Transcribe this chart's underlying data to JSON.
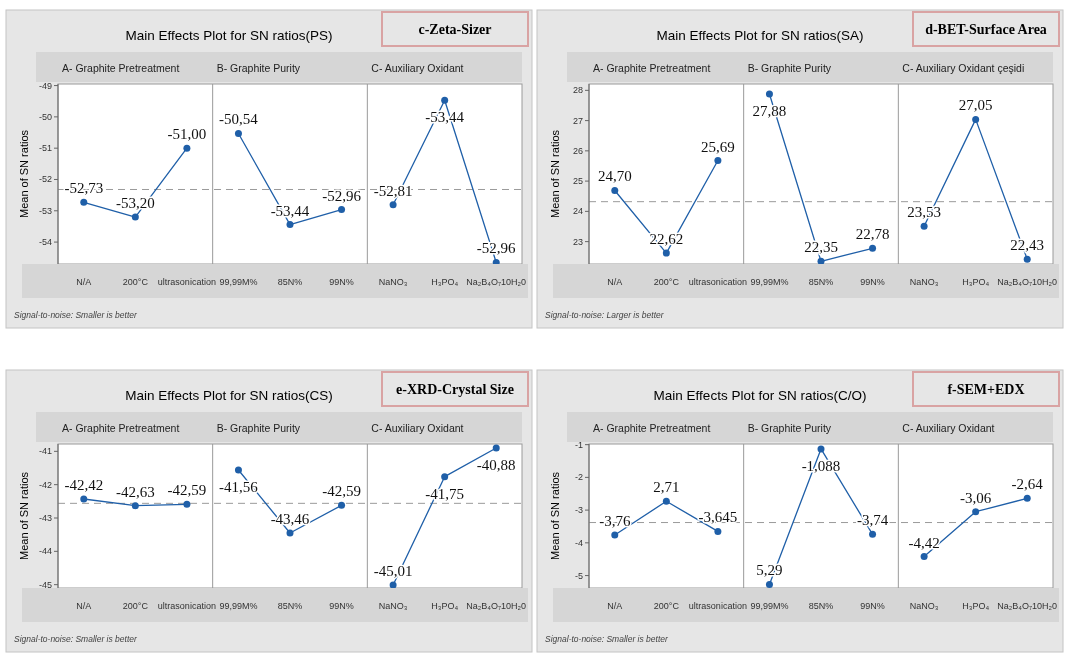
{
  "chart_data": [
    {
      "type": "line",
      "title": "Main Effects Plot for SN ratios(PS)",
      "ylabel": "Mean of SN ratios",
      "categories": [
        "N/A",
        "200°C",
        "ultrasonication",
        "99,99M%",
        "85N%",
        "99N%",
        "NaNO₃",
        "H₃PO₄",
        "Na₂B₄O₇10H₂0"
      ],
      "series": [
        {
          "color": "#1f5fa8",
          "values": [
            -52.73,
            -53.2,
            -51.0,
            null,
            null,
            null,
            null,
            null,
            null
          ]
        },
        {
          "color": "#1f5fa8",
          "values": [
            null,
            null,
            null,
            -50.53,
            -53.44,
            -52.96,
            null,
            null,
            null
          ]
        },
        {
          "color": "#1f5fa8",
          "values": [
            null,
            null,
            null,
            null,
            null,
            null,
            -52.81,
            -49.47,
            -54.65
          ]
        }
      ],
      "ylim": [
        -54.7,
        -48.95
      ],
      "yticks": [
        -54,
        -53,
        -52,
        -51,
        -50,
        -49
      ],
      "marker": "circle",
      "line_style": "solid",
      "ref_lines": [
        {
          "axis": "y",
          "value": -52.32,
          "color": "#9a9a9a",
          "line_style": "dashed"
        }
      ],
      "annotations": [
        "c-Zeta-Sizer",
        "Signal-to-noise: Smaller is better",
        "A-  Graphite Pretreatment",
        "B- Graphite Purity",
        "C- Auxiliary Oxidant",
        {
          "text": "-52,73",
          "x": "N/A",
          "y": -52.73
        },
        {
          "text": "-53,20",
          "x": "200°C",
          "y": -53.2
        },
        {
          "text": "-51,00",
          "x": "ultrasonication",
          "y": -51.0
        },
        {
          "text": "-50,54",
          "x": "99,99M%",
          "y": -50.53
        },
        {
          "text": "-53,44",
          "x": "85N%",
          "y": -53.44
        },
        {
          "text": "-52,96",
          "x": "99N%",
          "y": -52.96
        },
        {
          "text": "-52,81",
          "x": "NaNO₃",
          "y": -52.81
        },
        {
          "text": "-53,44",
          "x": "H₃PO₄",
          "y": -49.47
        },
        {
          "text": "-52,96",
          "x": "Na₂B₄O₇10H₂0",
          "y": -54.65
        }
      ]
    },
    {
      "type": "line",
      "title": "Main Effects Plot for SN ratios(SA)",
      "ylabel": "Mean of SN ratios",
      "categories": [
        "N/A",
        "200°C",
        "ultrasonication",
        "99,99M%",
        "85N%",
        "99N%",
        "NaNO₃",
        "H₃PO₄",
        "Na₂B₄O₇10H₂0"
      ],
      "series": [
        {
          "color": "#1f5fa8",
          "values": [
            24.69,
            22.62,
            25.68,
            null,
            null,
            null,
            null,
            null,
            null
          ]
        },
        {
          "color": "#1f5fa8",
          "values": [
            null,
            null,
            null,
            27.88,
            22.35,
            22.78,
            null,
            null,
            null
          ]
        },
        {
          "color": "#1f5fa8",
          "values": [
            null,
            null,
            null,
            null,
            null,
            null,
            23.51,
            27.04,
            22.42
          ]
        }
      ],
      "ylim": [
        22.26,
        28.21
      ],
      "yticks": [
        23,
        24,
        25,
        26,
        27,
        28
      ],
      "marker": "circle",
      "line_style": "solid",
      "ref_lines": [
        {
          "axis": "y",
          "value": 24.32,
          "color": "#9a9a9a",
          "line_style": "dashed"
        }
      ],
      "annotations": [
        "d-BET-Surface Area",
        "Signal-to-noise: Larger is better",
        "A-  Graphite Pretreatment",
        "B- Graphite Purity",
        "C- Auxiliary Oxidant çeşidi",
        {
          "text": "24,70",
          "x": "N/A",
          "y": 24.69
        },
        {
          "text": "22,62",
          "x": "200°C",
          "y": 22.62
        },
        {
          "text": "25,69",
          "x": "ultrasonication",
          "y": 25.68
        },
        {
          "text": "27,88",
          "x": "99,99M%",
          "y": 27.88
        },
        {
          "text": "22,35",
          "x": "85N%",
          "y": 22.35
        },
        {
          "text": "22,78",
          "x": "99N%",
          "y": 22.78
        },
        {
          "text": "23,53",
          "x": "NaNO₃",
          "y": 23.51
        },
        {
          "text": "27,05",
          "x": "H₃PO₄",
          "y": 27.04
        },
        {
          "text": "22,43",
          "x": "Na₂B₄O₇10H₂0",
          "y": 22.42
        }
      ]
    },
    {
      "type": "line",
      "title": "Main Effects Plot for SN ratios(CS)",
      "ylabel": "Mean of SN ratios",
      "categories": [
        "N/A",
        "200°C",
        "ultrasonication",
        "99,99M%",
        "85N%",
        "99N%",
        "NaNO₃",
        "H₃PO₄",
        "Na₂B₄O₇10H₂0"
      ],
      "series": [
        {
          "color": "#1f5fa8",
          "values": [
            -42.43,
            -42.63,
            -42.59,
            null,
            null,
            null,
            null,
            null,
            null
          ]
        },
        {
          "color": "#1f5fa8",
          "values": [
            null,
            null,
            null,
            -41.56,
            -43.45,
            -42.62,
            null,
            null,
            null
          ]
        },
        {
          "color": "#1f5fa8",
          "values": [
            null,
            null,
            null,
            null,
            null,
            null,
            -45.01,
            -41.76,
            -40.9
          ]
        }
      ],
      "ylim": [
        -45.1,
        -40.78
      ],
      "yticks": [
        -45,
        -44,
        -43,
        -42,
        -41
      ],
      "marker": "circle",
      "line_style": "solid",
      "ref_lines": [
        {
          "axis": "y",
          "value": -42.56,
          "color": "#9a9a9a",
          "line_style": "dashed"
        }
      ],
      "annotations": [
        "e-XRD-Crystal Size",
        "Signal-to-noise: Smaller is better",
        "A-  Graphite Pretreatment",
        "B- Graphite Purity",
        "C- Auxiliary Oxidant",
        {
          "text": "-42,42",
          "x": "N/A",
          "y": -42.43
        },
        {
          "text": "-42,63",
          "x": "200°C",
          "y": -42.63
        },
        {
          "text": "-42,59",
          "x": "ultrasonication",
          "y": -42.59
        },
        {
          "text": "-41,56",
          "x": "99,99M%",
          "y": -41.56
        },
        {
          "text": "-43,46",
          "x": "85N%",
          "y": -43.45
        },
        {
          "text": "-42,59",
          "x": "99N%",
          "y": -42.62
        },
        {
          "text": "-45,01",
          "x": "NaNO₃",
          "y": -45.01
        },
        {
          "text": "-41,75",
          "x": "H₃PO₄",
          "y": -41.76
        },
        {
          "text": "-40,88",
          "x": "Na₂B₄O₇10H₂0",
          "y": -40.9
        }
      ]
    },
    {
      "type": "line",
      "title": "Main Effects Plot for SN ratios(C/O)",
      "ylabel": "Mean of SN ratios",
      "categories": [
        "N/A",
        "200°C",
        "ultrasonication",
        "99,99M%",
        "85N%",
        "99N%",
        "NaNO₃",
        "H₃PO₄",
        "Na₂B₄O₇10H₂0"
      ],
      "series": [
        {
          "color": "#1f5fa8",
          "values": [
            -3.76,
            -2.73,
            -3.65,
            null,
            null,
            null,
            null,
            null,
            null
          ]
        },
        {
          "color": "#1f5fa8",
          "values": [
            null,
            null,
            null,
            -5.27,
            -1.13,
            -3.74,
            null,
            null,
            null
          ]
        },
        {
          "color": "#1f5fa8",
          "values": [
            null,
            null,
            null,
            null,
            null,
            null,
            -4.42,
            -3.05,
            -2.64
          ]
        }
      ],
      "ylim": [
        -5.38,
        -0.98
      ],
      "yticks": [
        -5,
        -4,
        -3,
        -2,
        -1
      ],
      "marker": "circle",
      "line_style": "solid",
      "ref_lines": [
        {
          "axis": "y",
          "value": -3.38,
          "color": "#9a9a9a",
          "line_style": "dashed"
        }
      ],
      "annotations": [
        "f-SEM+EDX",
        "Signal-to-noise: Smaller is better",
        "A-  Graphite Pretreatment",
        "B- Graphite Purity",
        "C- Auxiliary Oxidant",
        {
          "text": "-3,76",
          "x": "N/A",
          "y": -3.76
        },
        {
          "text": "2,71",
          "x": "200°C",
          "y": -2.73
        },
        {
          "text": "-3,645",
          "x": "ultrasonication",
          "y": -3.65
        },
        {
          "text": "5,29",
          "x": "99,99M%",
          "y": -5.27
        },
        {
          "text": "-1,088",
          "x": "85N%",
          "y": -1.13
        },
        {
          "text": "-3,74",
          "x": "99N%",
          "y": -3.74
        },
        {
          "text": "-4,42",
          "x": "NaNO₃",
          "y": -4.42
        },
        {
          "text": "-3,06",
          "x": "H₃PO₄",
          "y": -3.05
        },
        {
          "text": "-2,64",
          "x": "Na₂B₄O₇10H₂0",
          "y": -2.64
        }
      ]
    }
  ]
}
